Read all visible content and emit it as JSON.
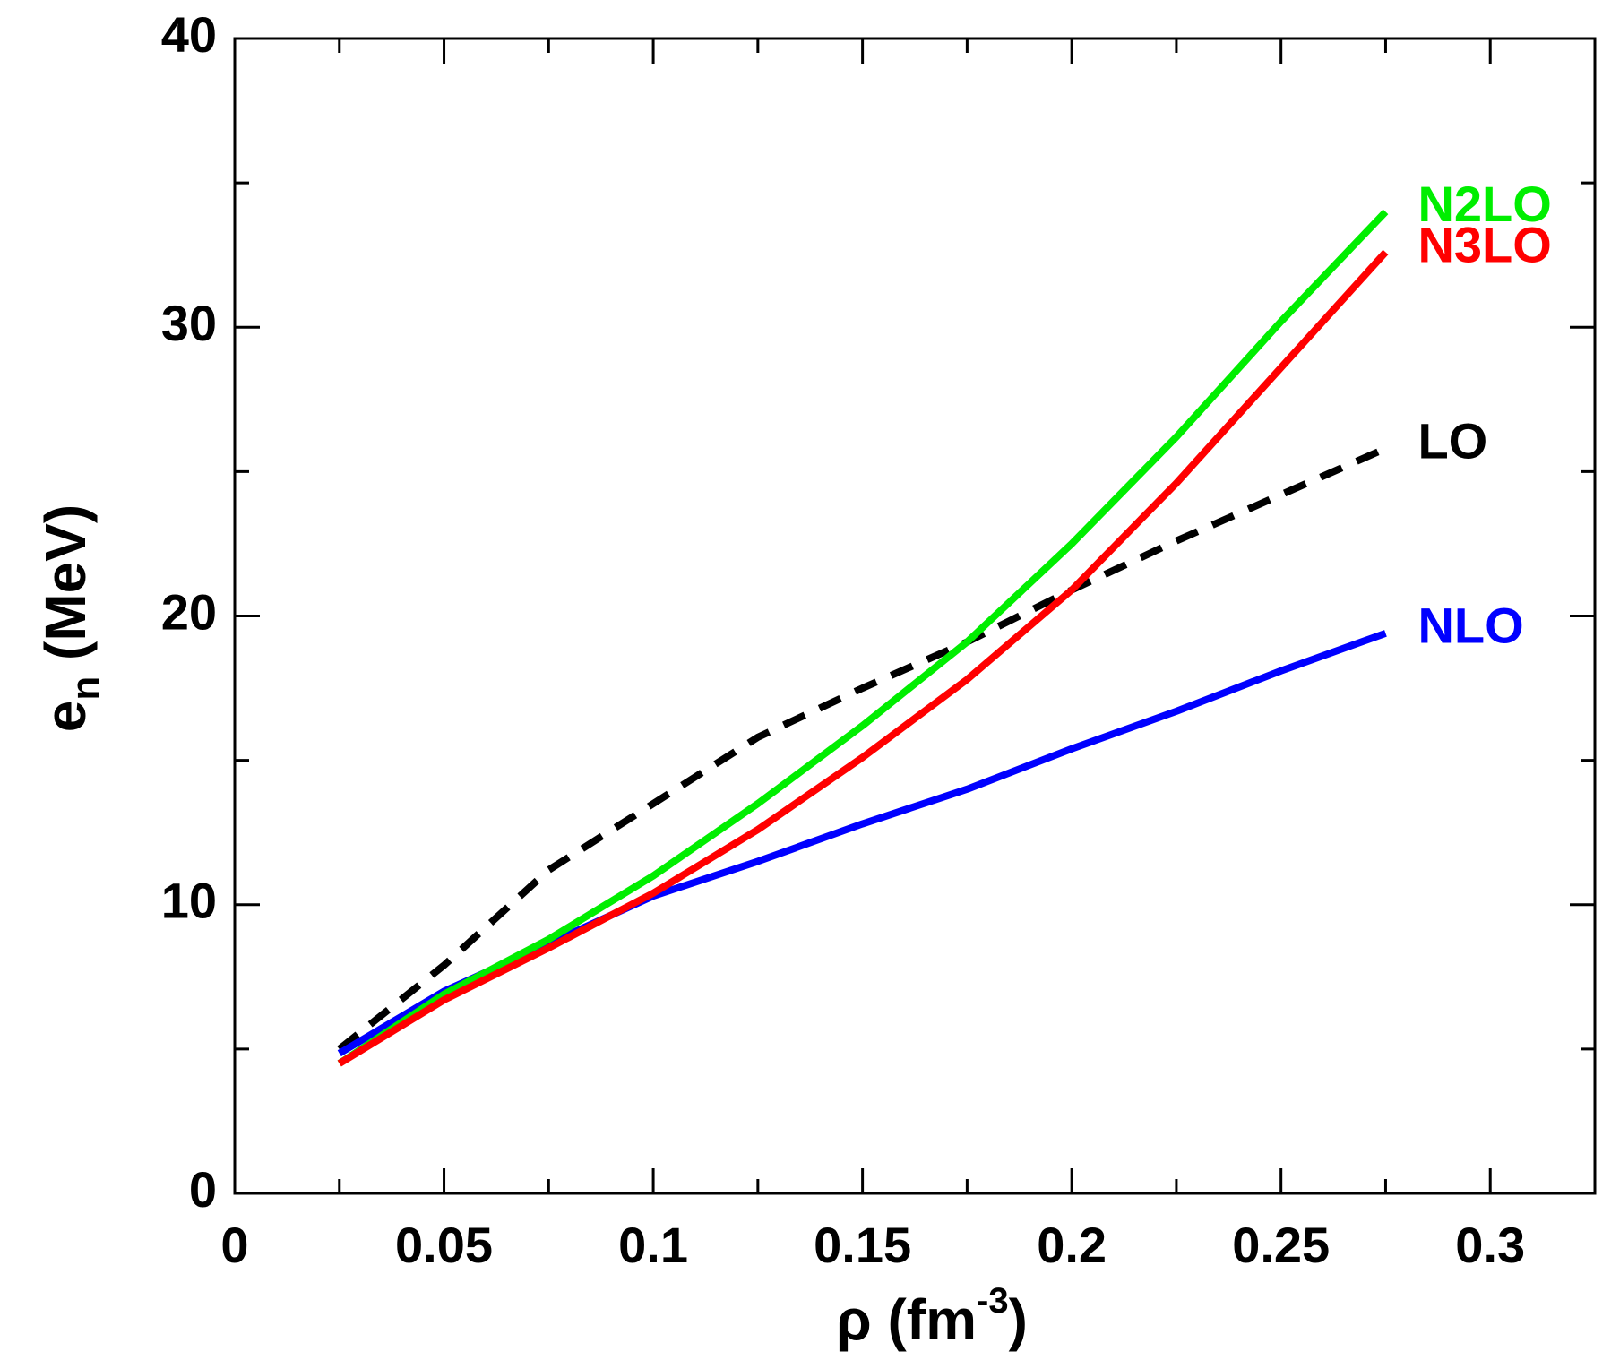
{
  "chart_data": {
    "type": "line",
    "xlabel": [
      "ρ (fm",
      "-3",
      ")"
    ],
    "ylabel": [
      "e",
      "n",
      " (MeV)"
    ],
    "x": [
      0.025,
      0.05,
      0.075,
      0.1,
      0.125,
      0.15,
      0.175,
      0.2,
      0.225,
      0.25,
      0.275
    ],
    "series": [
      {
        "name": "LO",
        "color": "#000000",
        "dashed": true,
        "values": [
          5.0,
          7.9,
          11.2,
          13.5,
          15.8,
          17.5,
          19.1,
          20.9,
          22.6,
          24.2,
          25.8
        ]
      },
      {
        "name": "NLO",
        "color": "#0000ff",
        "values": [
          4.85,
          7.0,
          8.65,
          10.3,
          11.5,
          12.8,
          14.0,
          15.4,
          16.7,
          18.1,
          19.4
        ]
      },
      {
        "name": "N2LO",
        "color": "#00ee00",
        "values": [
          4.5,
          6.9,
          8.8,
          11.0,
          13.5,
          16.2,
          19.1,
          22.5,
          26.2,
          30.2,
          34.0
        ]
      },
      {
        "name": "N3LO",
        "color": "#ff0000",
        "values": [
          4.5,
          6.7,
          8.5,
          10.4,
          12.6,
          15.1,
          17.8,
          20.9,
          24.6,
          28.6,
          32.6
        ]
      }
    ],
    "xlim": [
      0,
      0.325
    ],
    "ylim": [
      0,
      40
    ],
    "xticks": [
      0,
      0.05,
      0.1,
      0.15,
      0.2,
      0.25,
      0.3
    ],
    "xminorticks": [
      0.025,
      0.075,
      0.125,
      0.175,
      0.225,
      0.275
    ],
    "yticks": [
      0,
      10,
      20,
      30,
      40
    ],
    "yminorticks": [
      5,
      15,
      25,
      35
    ],
    "grid": false,
    "mirror_ticks": true
  }
}
